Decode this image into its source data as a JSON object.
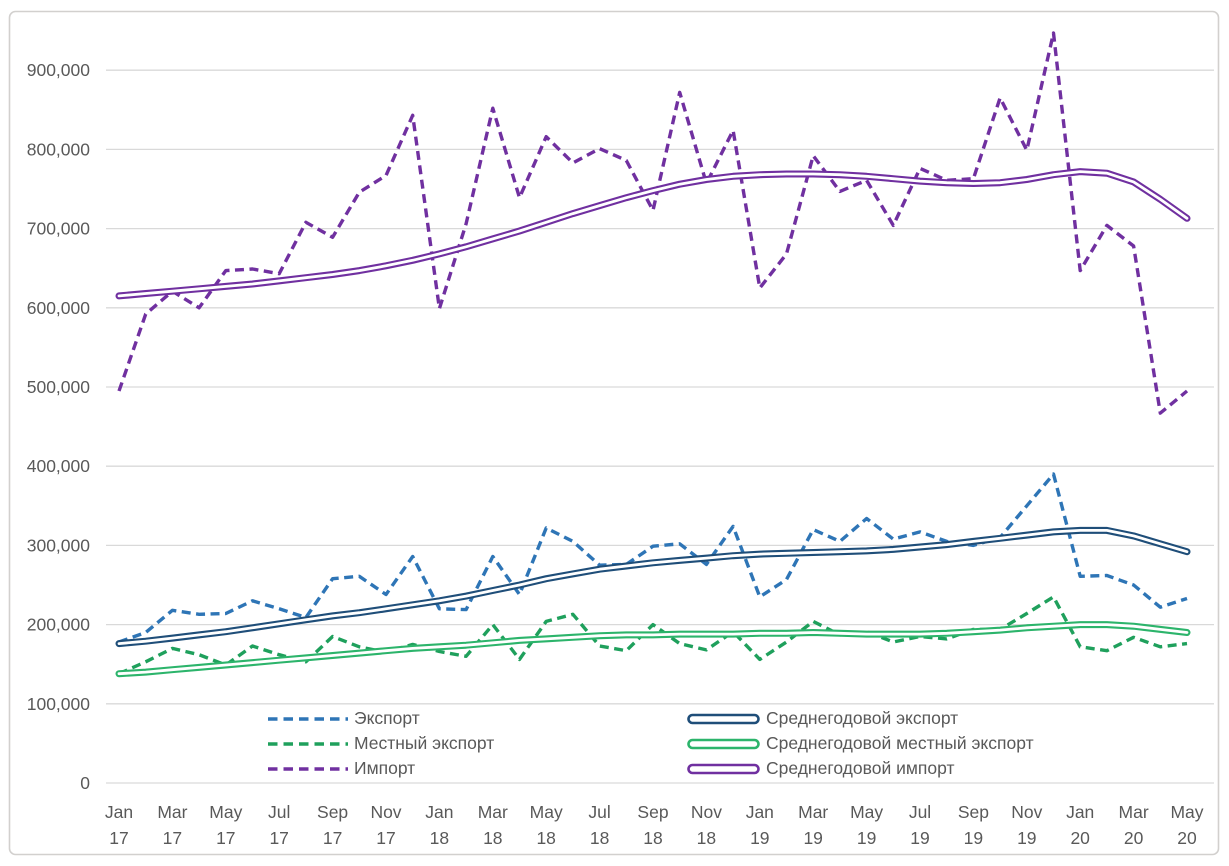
{
  "chart_data": {
    "type": "line",
    "title": "",
    "grid": true,
    "legend_position": "bottom-inside",
    "axis_color": "#595959",
    "grid_color": "#D9D9D9",
    "border_color": "#D2D0CE",
    "ylim": [
      0,
      960000
    ],
    "y_ticks": [
      {
        "value": 0,
        "label": "0"
      },
      {
        "value": 100000,
        "label": "100,000"
      },
      {
        "value": 200000,
        "label": "200,000"
      },
      {
        "value": 300000,
        "label": "300,000"
      },
      {
        "value": 400000,
        "label": "400,000"
      },
      {
        "value": 500000,
        "label": "500,000"
      },
      {
        "value": 600000,
        "label": "600,000"
      },
      {
        "value": 700000,
        "label": "700,000"
      },
      {
        "value": 800000,
        "label": "800,000"
      },
      {
        "value": 900000,
        "label": "900,000"
      }
    ],
    "x": [
      "Jan 17",
      "Feb 17",
      "Mar 17",
      "Apr 17",
      "May 17",
      "Jun 17",
      "Jul 17",
      "Aug 17",
      "Sep 17",
      "Oct 17",
      "Nov 17",
      "Dec 17",
      "Jan 18",
      "Feb 18",
      "Mar 18",
      "Apr 18",
      "May 18",
      "Jun 18",
      "Jul 18",
      "Aug 18",
      "Sep 18",
      "Oct 18",
      "Nov 18",
      "Dec 18",
      "Jan 19",
      "Feb 19",
      "Mar 19",
      "Apr 19",
      "May 19",
      "Jun 19",
      "Jul 19",
      "Aug 19",
      "Sep 19",
      "Oct 19",
      "Nov 19",
      "Dec 19",
      "Jan 20",
      "Feb 20",
      "Mar 20",
      "Apr 20",
      "May 20"
    ],
    "x_ticks": [
      {
        "month": "Jan",
        "year": "17"
      },
      {
        "month": "Mar",
        "year": "17"
      },
      {
        "month": "May",
        "year": "17"
      },
      {
        "month": "Jul",
        "year": "17"
      },
      {
        "month": "Sep",
        "year": "17"
      },
      {
        "month": "Nov",
        "year": "17"
      },
      {
        "month": "Jan",
        "year": "18"
      },
      {
        "month": "Mar",
        "year": "18"
      },
      {
        "month": "May",
        "year": "18"
      },
      {
        "month": "Jul",
        "year": "18"
      },
      {
        "month": "Sep",
        "year": "18"
      },
      {
        "month": "Nov",
        "year": "18"
      },
      {
        "month": "Jan",
        "year": "19"
      },
      {
        "month": "Mar",
        "year": "19"
      },
      {
        "month": "May",
        "year": "19"
      },
      {
        "month": "Jul",
        "year": "19"
      },
      {
        "month": "Sep",
        "year": "19"
      },
      {
        "month": "Nov",
        "year": "19"
      },
      {
        "month": "Jan",
        "year": "20"
      },
      {
        "month": "Mar",
        "year": "20"
      },
      {
        "month": "May",
        "year": "20"
      }
    ],
    "series": [
      {
        "name": "Экспорт",
        "color": "#2E75B6",
        "style": "dashed",
        "values": [
          178000,
          190000,
          218000,
          213000,
          214000,
          230000,
          220000,
          209000,
          258000,
          261000,
          238000,
          286000,
          220000,
          219000,
          286000,
          238000,
          322000,
          305000,
          275000,
          276000,
          299000,
          302000,
          276000,
          324000,
          235000,
          257000,
          320000,
          305000,
          334000,
          308000,
          317000,
          305000,
          300000,
          310000,
          350000,
          390000,
          261000,
          262000,
          250000,
          222000,
          233000
        ]
      },
      {
        "name": "Местный экспорт",
        "color": "#1FA05C",
        "style": "dashed",
        "values": [
          138000,
          153000,
          170000,
          162000,
          149000,
          173000,
          162000,
          153000,
          185000,
          172000,
          165000,
          175000,
          166000,
          160000,
          200000,
          156000,
          204000,
          213000,
          173000,
          167000,
          200000,
          176000,
          168000,
          191000,
          156000,
          178000,
          204000,
          187000,
          191000,
          178000,
          185000,
          182000,
          194000,
          194000,
          214000,
          235000,
          172000,
          167000,
          184000,
          172000,
          176000
        ]
      },
      {
        "name": "Импорт",
        "color": "#7030A0",
        "style": "dashed",
        "values": [
          495000,
          592000,
          621000,
          600000,
          647000,
          649000,
          643000,
          708000,
          689000,
          746000,
          767000,
          843000,
          599000,
          706000,
          852000,
          739000,
          816000,
          783000,
          801000,
          786000,
          723000,
          872000,
          757000,
          824000,
          625000,
          668000,
          792000,
          747000,
          761000,
          704000,
          776000,
          761000,
          763000,
          865000,
          799000,
          947000,
          647000,
          704000,
          678000,
          467000,
          495000
        ]
      },
      {
        "name": "Среднегодовой экспорт",
        "color": "#1F4E79",
        "style": "double",
        "values": [
          176000,
          179000,
          183000,
          187000,
          191000,
          196000,
          201000,
          206000,
          211000,
          215000,
          220000,
          225000,
          230000,
          236000,
          243000,
          250000,
          258000,
          264000,
          270000,
          274000,
          278000,
          281000,
          284000,
          287000,
          289000,
          290000,
          291000,
          292000,
          293000,
          295000,
          298000,
          301000,
          305000,
          309000,
          313000,
          317000,
          319000,
          319000,
          312000,
          302000,
          292000
        ]
      },
      {
        "name": "Среднегодовой местный экспорт",
        "color": "#2CB46B",
        "style": "double",
        "values": [
          138000,
          140000,
          143000,
          146000,
          149000,
          152000,
          155000,
          158000,
          161000,
          164000,
          167000,
          170000,
          172000,
          174000,
          177000,
          180000,
          182000,
          184000,
          186000,
          187000,
          187000,
          188000,
          188000,
          188000,
          189000,
          189000,
          190000,
          189000,
          188000,
          188000,
          188000,
          189000,
          191000,
          193000,
          196000,
          198000,
          200000,
          200000,
          198000,
          194000,
          190000
        ]
      },
      {
        "name": "Среднегодовой импорт",
        "color": "#7030A0",
        "style": "double",
        "values": [
          615000,
          618000,
          621000,
          624000,
          627000,
          630000,
          634000,
          638000,
          642000,
          647000,
          653000,
          660000,
          668000,
          677000,
          687000,
          697000,
          708000,
          719000,
          729000,
          739000,
          748000,
          756000,
          762000,
          766000,
          768000,
          769000,
          769000,
          768000,
          766000,
          763000,
          760000,
          758000,
          757000,
          758000,
          762000,
          768000,
          772000,
          770000,
          759000,
          737000,
          713000
        ]
      }
    ]
  }
}
